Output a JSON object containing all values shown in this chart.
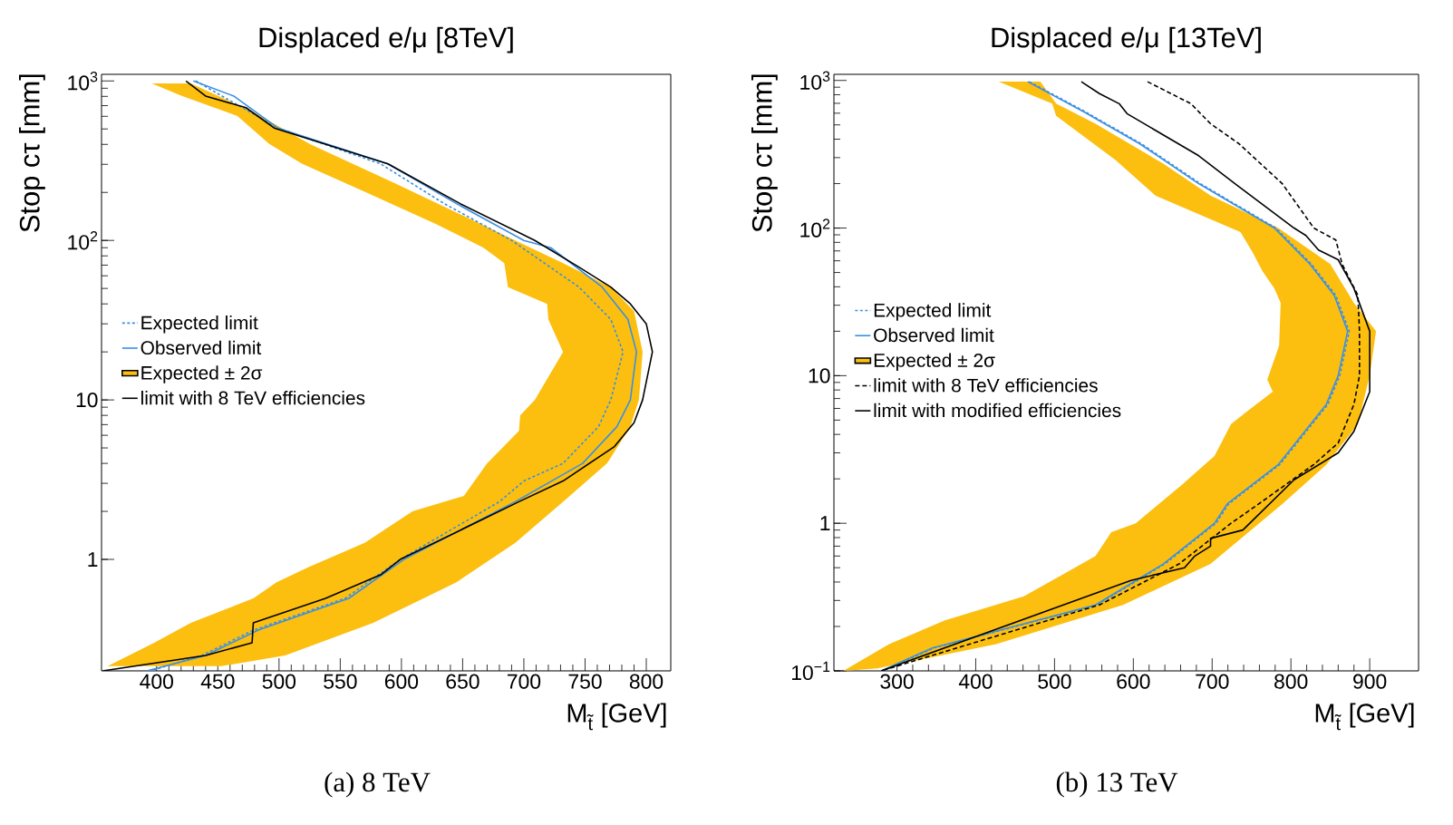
{
  "chart_data": [
    {
      "type": "line",
      "title": "Displaced e/μ [8TeV]",
      "xlabel": "M$_{t̃}$ [GeV]",
      "ylabel": "Stop cτ [mm]",
      "annotations": [
        "(a) 8 TeV"
      ],
      "xlim": [
        355,
        820
      ],
      "xticks": [
        400,
        450,
        500,
        550,
        600,
        650,
        700,
        750,
        800
      ],
      "ylim": [
        0.2,
        1100
      ],
      "yticks": [
        {
          "value": 1,
          "label": "1"
        },
        {
          "value": 10,
          "label": "10"
        },
        {
          "value": 100,
          "label": "10$^{2}$"
        },
        {
          "value": 1000,
          "label": "10$^{3}$"
        }
      ],
      "log": "y",
      "legend": "left",
      "marker": "none",
      "series": [
        {
          "name": "Expected limit",
          "color": "#3a8fe3",
          "line_style": "dotted",
          "x": [
            432,
            499,
            583,
            635,
            690,
            745,
            771,
            781,
            771,
            761,
            732,
            700,
            680,
            599,
            554,
            479,
            437,
            395
          ],
          "values": [
            1000,
            507,
            302,
            170,
            100,
            51,
            32,
            20,
            10,
            6.8,
            4.0,
            3.1,
            2.3,
            1.0,
            0.57,
            0.36,
            0.25,
            0.2
          ]
        },
        {
          "name": "Observed limit",
          "color": "#3a8fe3",
          "line_style": "solid",
          "x": [
            430,
            463,
            499,
            589,
            645,
            700,
            722,
            764,
            785,
            792,
            787,
            776,
            748,
            693,
            602,
            557,
            483,
            440,
            392
          ],
          "values": [
            1000,
            804,
            507,
            302,
            170,
            100,
            90,
            51,
            32,
            20,
            10,
            6.8,
            4.0,
            2.3,
            1.0,
            0.57,
            0.36,
            0.25,
            0.2
          ]
        },
        {
          "name": "Expected ± 2σ",
          "type": "area",
          "color": "#fcbf0f",
          "x": [
            428,
            479,
            525,
            596,
            693,
            732,
            771,
            790,
            797,
            794,
            787,
            768,
            732,
            693,
            645,
            577,
            505,
            453,
            360,
            398,
            428,
            479,
            498,
            525,
            570,
            609,
            651,
            670,
            696,
            697,
            709,
            732,
            720,
            719,
            687,
            684,
            667,
            628,
            570,
            519,
            492,
            466,
            421,
            396
          ],
          "values": [
            966,
            638,
            403,
            226,
            100,
            72,
            51,
            36,
            20,
            10,
            6.8,
            4.0,
            2.3,
            1.27,
            0.72,
            0.4,
            0.25,
            0.214,
            0.214,
            0.3,
            0.4,
            0.57,
            0.72,
            0.9,
            1.27,
            2.0,
            2.5,
            4.0,
            6.4,
            8.0,
            10,
            20,
            32,
            40,
            51,
            72,
            90,
            127,
            202,
            302,
            403,
            603,
            804,
            966
          ]
        },
        {
          "name": "limit with 8 TeV efficiencies",
          "color": "#000000",
          "line_style": "solid",
          "x": [
            424,
            440,
            473,
            496,
            589,
            648,
            709,
            745,
            771,
            787,
            800,
            805,
            797,
            790,
            774,
            732,
            696,
            599,
            583,
            538,
            479,
            478,
            440,
            356
          ],
          "values": [
            1000,
            804,
            680,
            507,
            302,
            170,
            100,
            68,
            51,
            40,
            30,
            20,
            10,
            7.2,
            5.1,
            3.1,
            2.3,
            1.0,
            0.8,
            0.57,
            0.4,
            0.3,
            0.25,
            0.2
          ]
        }
      ]
    },
    {
      "type": "line",
      "title": "Displaced e/μ [13TeV]",
      "xlabel": "M$_{t̃}$ [GeV]",
      "ylabel": "Stop cτ [mm]",
      "annotations": [
        "(b) 13 TeV"
      ],
      "xlim": [
        220,
        962
      ],
      "xticks": [
        300,
        400,
        500,
        600,
        700,
        800,
        900
      ],
      "ylim": [
        0.1,
        1100
      ],
      "yticks": [
        {
          "value": 0.1,
          "label": "10$^{−1}$"
        },
        {
          "value": 1,
          "label": "1"
        },
        {
          "value": 10,
          "label": "10"
        },
        {
          "value": 100,
          "label": "10$^{2}$"
        },
        {
          "value": 1000,
          "label": "10$^{3}$"
        }
      ],
      "log": "y",
      "legend": "left",
      "marker": "none",
      "series": [
        {
          "name": "Expected limit",
          "color": "#3a8fe3",
          "line_style": "dotted",
          "x": [
            468,
            539,
            610,
            685,
            781,
            826,
            857,
            874,
            862,
            847,
            786,
            721,
            705,
            640,
            554,
            347,
            282
          ],
          "values": [
            981,
            614,
            373,
            200,
            100,
            57,
            35,
            20,
            10,
            6.4,
            2.5,
            1.35,
            1.0,
            0.53,
            0.28,
            0.143,
            0.1
          ]
        },
        {
          "name": "Observed limit",
          "color": "#3a8fe3",
          "line_style": "solid",
          "x": [
            466,
            537,
            608,
            683,
            779,
            824,
            855,
            872,
            860,
            845,
            784,
            719,
            703,
            638,
            552,
            345,
            280
          ],
          "values": [
            981,
            614,
            373,
            200,
            100,
            57,
            35,
            20,
            10,
            6.4,
            2.5,
            1.35,
            1.0,
            0.53,
            0.28,
            0.143,
            0.1
          ]
        },
        {
          "name": "Expected ± 2σ",
          "type": "area",
          "color": "#fcbf0f",
          "x": [
            482,
            502,
            552,
            638,
            698,
            784,
            850,
            880,
            908,
            900,
            885,
            845,
            789,
            698,
            587,
            426,
            275,
            232,
            290,
            361,
            461,
            517,
            552,
            572,
            603,
            663,
            703,
            724,
            744,
            777,
            770,
            785,
            787,
            779,
            764,
            751,
            736,
            628,
            577,
            502,
            497,
            429
          ],
          "values": [
            981,
            696,
            509,
            273,
            166,
            100,
            57,
            31,
            20,
            10,
            4.7,
            2.5,
            1.35,
            0.53,
            0.28,
            0.152,
            0.104,
            0.1,
            0.152,
            0.22,
            0.32,
            0.47,
            0.6,
            0.87,
            1.0,
            1.85,
            2.86,
            4.7,
            5.7,
            7.8,
            9.4,
            16,
            31,
            39,
            51,
            69,
            94,
            166,
            290,
            577,
            696,
            981
          ]
        },
        {
          "name": "limit with 8 TeV efficiencies",
          "color": "#000000",
          "line_style": "dashed",
          "x": [
            618,
            673,
            698,
            734,
            789,
            829,
            857,
            865,
            885,
            887,
            887,
            880,
            860,
            829,
            759,
            724,
            658,
            557,
            376,
            280
          ],
          "values": [
            981,
            696,
            509,
            373,
            200,
            100,
            83,
            57,
            35,
            20,
            10,
            6.4,
            3.5,
            2.5,
            1.35,
            1.0,
            0.53,
            0.28,
            0.143,
            0.1
          ]
        },
        {
          "name": "limit with modified efficiencies",
          "color": "#000000",
          "line_style": "solid",
          "x": [
            534,
            557,
            582,
            592,
            683,
            729,
            804,
            819,
            835,
            860,
            880,
            900,
            900,
            880,
            860,
            804,
            739,
            698,
            698,
            678,
            665,
            597,
            280
          ],
          "values": [
            981,
            814,
            696,
            596,
            309,
            200,
            100,
            89,
            71,
            61,
            39,
            20,
            7.8,
            4.2,
            3.0,
            1.97,
            0.9,
            0.79,
            0.7,
            0.6,
            0.5,
            0.41,
            0.1
          ]
        }
      ]
    }
  ]
}
